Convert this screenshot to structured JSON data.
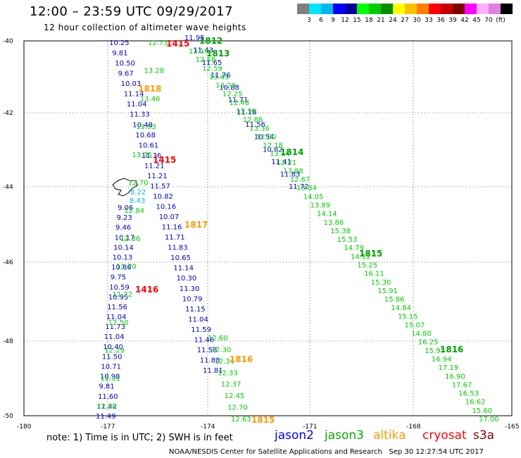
{
  "header": {
    "title": "12:00 – 23:59 UTC 09/29/2017",
    "subtitle": "12 hour collection of altimeter wave heights"
  },
  "legend": {
    "colors": [
      "#808080",
      "#00e5ff",
      "#00b8f0",
      "#0000ff",
      "#0000a0",
      "#00ff00",
      "#00cc00",
      "#009000",
      "#ffff00",
      "#ffc000",
      "#ff8000",
      "#ff0000",
      "#c80000",
      "#800000",
      "#ff00ff",
      "#ffb0ff",
      "#e080e0",
      "#000000"
    ],
    "labels": [
      "3",
      "6",
      "9",
      "12",
      "15",
      "18",
      "21",
      "24",
      "27",
      "30",
      "33",
      "36",
      "39",
      "42",
      "45",
      "70",
      "(ft)"
    ]
  },
  "axes": {
    "lat_labels": [
      "-40",
      "-42",
      "-44",
      "-46",
      "-48",
      "-50"
    ],
    "lon_labels": [
      "-180",
      "-177",
      "-174",
      "-171",
      "-168",
      "-165"
    ]
  },
  "tracks": [
    {
      "id": "jason2-a",
      "satellite": "jason2",
      "color": "#0000cc",
      "labels": [
        "10.25",
        "9.81",
        "10.50",
        "9.67",
        "10.03",
        "11.14",
        "11.04",
        "11.33",
        "10.48",
        "10.68",
        "10.61",
        "11.36",
        "11.21",
        "11.21",
        "11.57",
        "10.82",
        "10.16",
        "10.07",
        "11.16",
        "11.71",
        "11.83",
        "10.65",
        "11.14",
        "10.30",
        "11.30",
        "10.79",
        "11.15",
        "11.04",
        "11.59",
        "11.46",
        "11.58",
        "11.88",
        "11.81"
      ]
    },
    {
      "id": "jason2-b",
      "satellite": "jason2",
      "color": "#0000cc",
      "labels": [
        "11.95",
        "11.43",
        "11.65",
        "11.76",
        "10.88",
        "11.71",
        "11.18",
        "11.56",
        "10.54",
        "10.82",
        "11.41",
        "11.83",
        "11.72"
      ]
    },
    {
      "id": "jason2-c",
      "satellite": "jason2",
      "color": "#0000cc",
      "labels": [
        "9.06",
        "9.23",
        "9.46",
        "10.17",
        "10.14",
        "10.13",
        "10.86",
        "9.75",
        "10.59",
        "10.95",
        "11.56",
        "11.04",
        "11.73",
        "11.04",
        "10.40",
        "11.50",
        "10.71",
        "10.98",
        "9.81",
        "11.60",
        "11.42",
        "11.49"
      ]
    },
    {
      "id": "jason2-fringe",
      "satellite": "jason2",
      "color": "#00b8f0",
      "labels": [
        "8.22",
        "8.43"
      ]
    },
    {
      "id": "jason3-a",
      "satellite": "jason3",
      "color": "#00cc00",
      "labels": [
        "12.73",
        "13.28",
        "13.46",
        "13.93",
        "13.35",
        "12.70",
        "12.84",
        "12.36",
        "11.70",
        "11.22",
        "12.50",
        "12.29",
        "12.31",
        "12.30"
      ]
    },
    {
      "id": "jason3-b",
      "satellite": "jason3",
      "color": "#00cc00",
      "labels": [
        "13.19",
        "12.58",
        "12.59",
        "13.49",
        "13.29",
        "12.25",
        "12.48",
        "13.30",
        "12.86",
        "13.36",
        "12.50",
        "12.18",
        "13.14",
        "13.21",
        "13.88",
        "12.67",
        "13.84",
        "14.05",
        "13.89",
        "14.14",
        "13.86",
        "15.38",
        "15.53",
        "14.79",
        "14.12",
        "15.25",
        "16.11",
        "15.30",
        "15.91",
        "15.86",
        "14.84",
        "15.15",
        "15.07",
        "14.80",
        "16.25",
        "15.97",
        "16.94",
        "17.19",
        "16.90",
        "17.67",
        "16.53",
        "16.62",
        "15.60",
        "17.00"
      ]
    },
    {
      "id": "jason3-c",
      "satellite": "jason3",
      "color": "#00cc00",
      "labels": [
        "12.60",
        "12.30",
        "12.34",
        "12.33",
        "12.37",
        "12.45",
        "12.70",
        "12.63"
      ]
    }
  ],
  "time_labels": [
    {
      "text": "1812",
      "color": "#00a000"
    },
    {
      "text": "1813",
      "color": "#00a000"
    },
    {
      "text": "1814",
      "color": "#00a000"
    },
    {
      "text": "1815",
      "color": "#00a000"
    },
    {
      "text": "1816",
      "color": "#00a000"
    },
    {
      "text": "1415",
      "color": "#ff0000"
    },
    {
      "text": "1415",
      "color": "#ff0000"
    },
    {
      "text": "1416",
      "color": "#ff0000"
    },
    {
      "text": "1818",
      "color": "#ff9900"
    },
    {
      "text": "1817",
      "color": "#ff9900"
    },
    {
      "text": "1816",
      "color": "#ff9900"
    },
    {
      "text": "1815",
      "color": "#ff9900"
    }
  ],
  "footer": {
    "note": "note: 1) Time is in UTC; 2) SWH is in feet",
    "satellites": [
      {
        "name": "jason2",
        "color": "#0000ff"
      },
      {
        "name": "jason3",
        "color": "#00aa00"
      },
      {
        "name": "altika",
        "color": "#ff9900"
      },
      {
        "name": "cryosat",
        "color": "#ff0000"
      },
      {
        "name": "s3a",
        "color": "#800000"
      }
    ],
    "credit": "NOAA/NESDIS Center for Satellite Applications and Research   Sep 30 12:27:54 UTC 2017"
  }
}
